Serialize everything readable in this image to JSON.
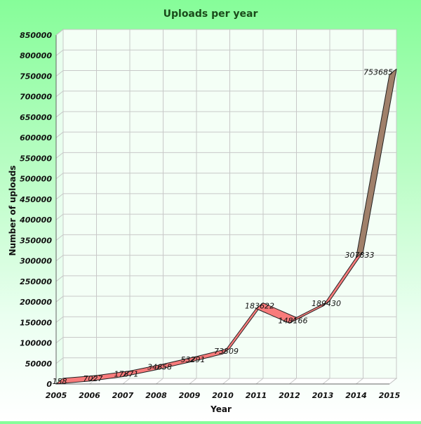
{
  "chart_data": {
    "type": "line",
    "title": "Uploads per year",
    "xlabel": "Year",
    "ylabel": "Number of uploads",
    "categories": [
      "2005",
      "2006",
      "2007",
      "2008",
      "2009",
      "2010",
      "2011",
      "2012",
      "2013",
      "2014",
      "2015"
    ],
    "series": [
      {
        "values": [
          158,
          7027,
          17871,
          34658,
          53291,
          73309,
          183622,
          148166,
          189430,
          307833,
          753685
        ]
      }
    ],
    "data_labels": [
      "158",
      "7027",
      "17871",
      "34658",
      "53291",
      "73309",
      "183622",
      "148166",
      "189430",
      "307833",
      "753685"
    ],
    "ylim": [
      0,
      850000
    ],
    "yticks": [
      0,
      50000,
      100000,
      150000,
      200000,
      250000,
      300000,
      350000,
      400000,
      450000,
      500000,
      550000,
      600000,
      650000,
      700000,
      750000,
      800000,
      850000
    ],
    "ytick_labels": [
      "0",
      "50000",
      "100000",
      "150000",
      "200000",
      "250000",
      "300000",
      "350000",
      "400000",
      "450000",
      "500000",
      "550000",
      "600000",
      "650000",
      "700000",
      "750000",
      "800000",
      "850000"
    ],
    "grid": true,
    "style": "3d-ribbon",
    "colors": {
      "ribbon_top": "#f87b7b",
      "ribbon_side": "#a0806a",
      "ribbon_edge": "#222222",
      "grid": "#c8c8c8",
      "back_wall": "#f4fff6",
      "floor": "#ffffff",
      "title": "#1a4a1a"
    }
  }
}
